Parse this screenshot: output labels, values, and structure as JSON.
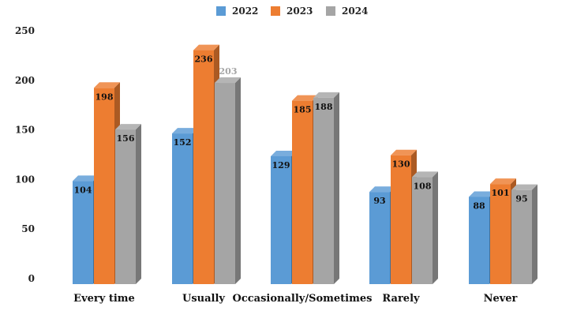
{
  "chart_data": {
    "type": "bar",
    "title": "",
    "xlabel": "",
    "ylabel": "",
    "ylim": [
      0,
      250
    ],
    "yticks": [
      0,
      50,
      100,
      150,
      200,
      250
    ],
    "categories": [
      "Every time",
      "Usually",
      "Occasionally/Sometimes",
      "Rarely",
      "Never"
    ],
    "series": [
      {
        "name": "2022",
        "values": [
          104,
          152,
          129,
          93,
          88
        ],
        "color": "#5b9bd5"
      },
      {
        "name": "2023",
        "values": [
          198,
          236,
          185,
          130,
          101
        ],
        "color": "#ed7d31"
      },
      {
        "name": "2024",
        "values": [
          156,
          203,
          188,
          108,
          95
        ],
        "color": "#a5a5a5"
      }
    ],
    "legend": "top-center",
    "grid": false,
    "style": "3d-columns"
  }
}
